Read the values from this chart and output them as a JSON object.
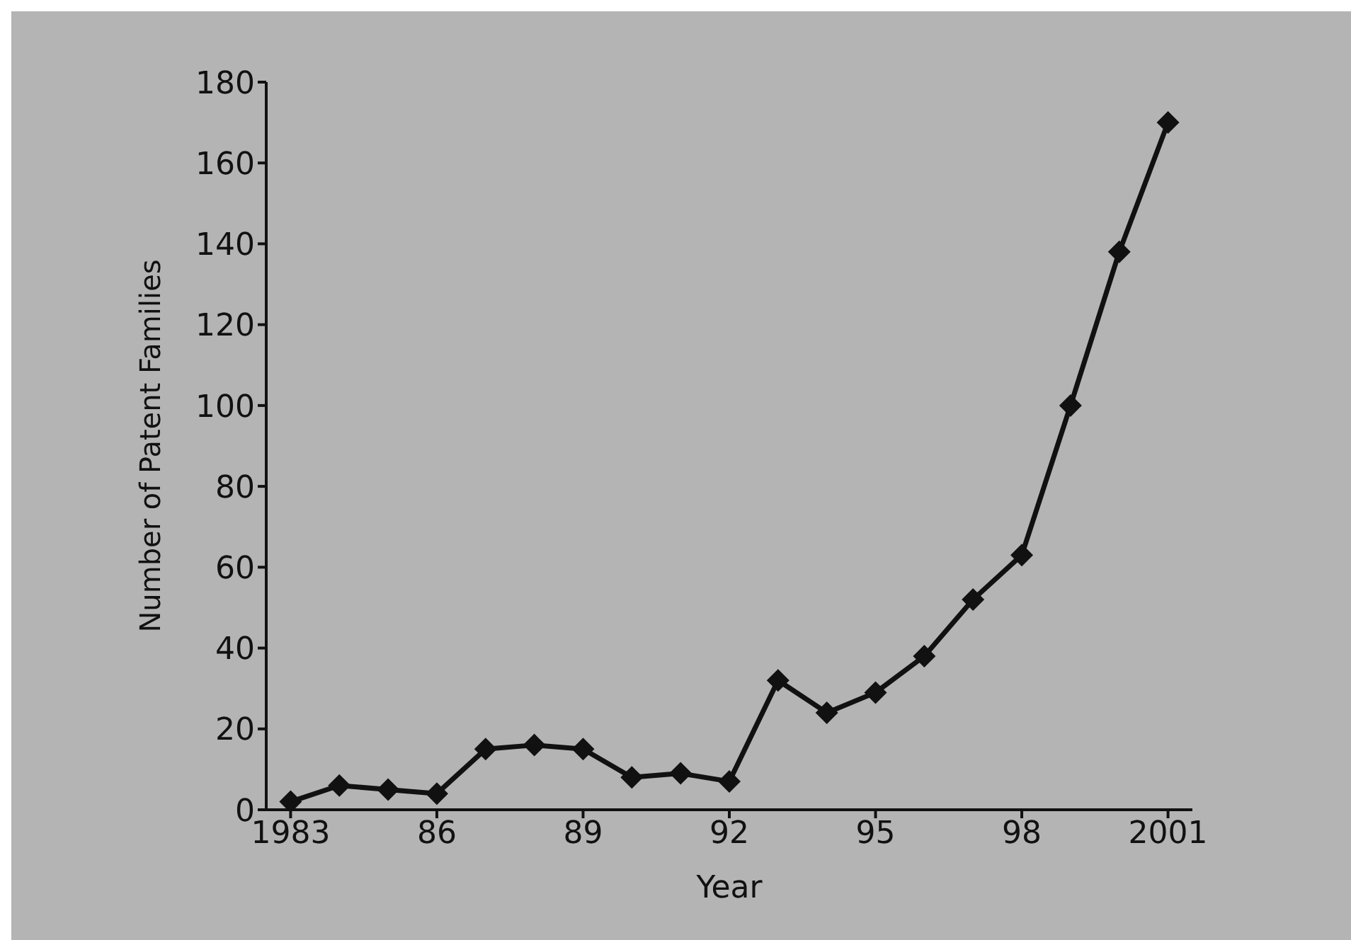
{
  "chart_data": {
    "type": "line",
    "xlabel": "Year",
    "ylabel": "Number of Patent Families",
    "x": [
      1983,
      1984,
      1985,
      1986,
      1987,
      1988,
      1989,
      1990,
      1991,
      1992,
      1993,
      1994,
      1995,
      1996,
      1997,
      1998,
      1999,
      2000,
      2001
    ],
    "series": [
      {
        "color": "#111111",
        "values": [
          2,
          6,
          5,
          4,
          15,
          16,
          15,
          8,
          9,
          7,
          32,
          24,
          29,
          38,
          52,
          63,
          100,
          138,
          170
        ]
      }
    ],
    "xlim": [
      1982.5,
      2001.5
    ],
    "xticks": [
      {
        "value": 1983,
        "label": "1983"
      },
      {
        "value": 1986,
        "label": "86"
      },
      {
        "value": 1989,
        "label": "89"
      },
      {
        "value": 1992,
        "label": "92"
      },
      {
        "value": 1995,
        "label": "95"
      },
      {
        "value": 1998,
        "label": "98"
      },
      {
        "value": 2001,
        "label": "2001"
      }
    ],
    "ylim": [
      0,
      180
    ],
    "yticks": [
      0,
      20,
      40,
      60,
      80,
      100,
      120,
      140,
      160,
      180
    ],
    "grid": false,
    "legend": false,
    "marker": "diamond",
    "line_style": "solid"
  }
}
